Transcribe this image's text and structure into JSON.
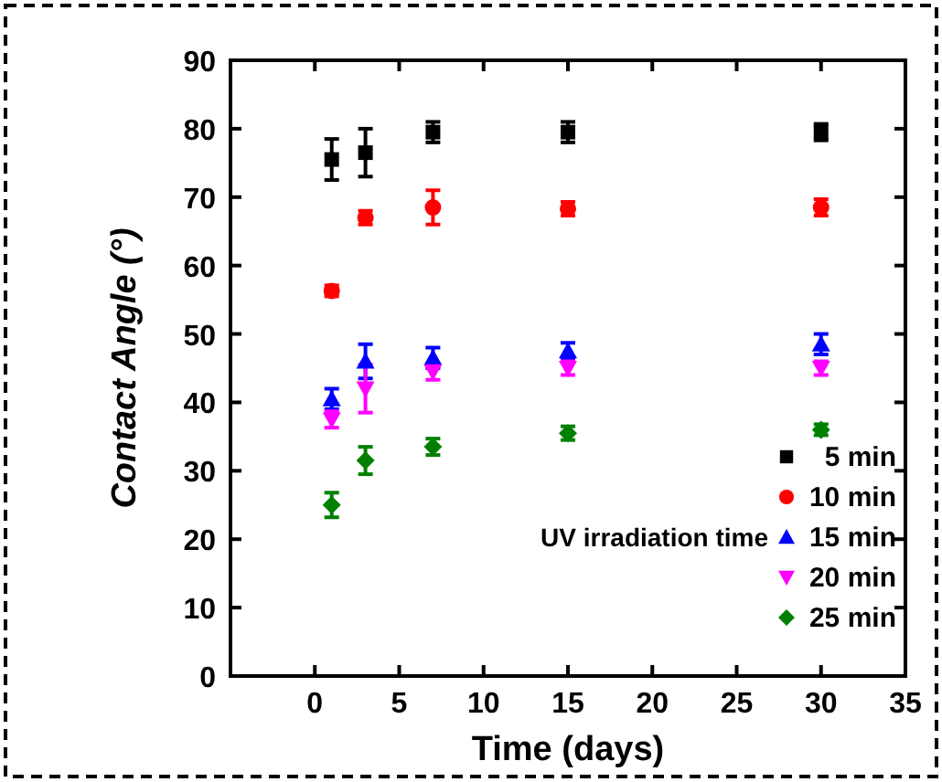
{
  "chart_data": {
    "type": "scatter",
    "xlabel": "Time (days)",
    "ylabel": "Contact Angle (°)",
    "legend_title": "UV irradiation time",
    "legend": "bottom right",
    "xlim": [
      -5,
      35
    ],
    "xticks": [
      0,
      5,
      10,
      15,
      20,
      25,
      30,
      35
    ],
    "ylim": [
      0,
      90
    ],
    "yticks": [
      0,
      10,
      20,
      30,
      40,
      50,
      60,
      70,
      80,
      90
    ],
    "x": [
      1,
      3,
      7,
      15,
      30
    ],
    "series": [
      {
        "name": "5 min",
        "color": "#000000",
        "marker": "square",
        "values": [
          75.5,
          76.5,
          79.5,
          79.5,
          79.5
        ],
        "errors": [
          3,
          3.5,
          1.5,
          1.5,
          1.2
        ]
      },
      {
        "name": "10 min",
        "color": "#ff0000",
        "marker": "circle",
        "values": [
          56.3,
          67,
          68.5,
          68.3,
          68.5
        ],
        "errors": [
          0.8,
          1,
          2.5,
          1,
          1.2
        ]
      },
      {
        "name": "15 min",
        "color": "#0000ff",
        "marker": "triangle",
        "values": [
          40.5,
          46,
          46.5,
          47.5,
          48.5
        ],
        "errors": [
          1.5,
          2.5,
          1.5,
          1.2,
          1.5
        ]
      },
      {
        "name": "20 min",
        "color": "#ff00ff",
        "marker": "triangle-down",
        "values": [
          37.5,
          42,
          44.5,
          45,
          45
        ],
        "errors": [
          1.2,
          3.5,
          1.2,
          1,
          1
        ]
      },
      {
        "name": "25 min",
        "color": "#008000",
        "marker": "diamond",
        "values": [
          25,
          31.5,
          33.5,
          35.5,
          36
        ],
        "errors": [
          1.8,
          2,
          1.2,
          1,
          0.8
        ]
      }
    ]
  }
}
